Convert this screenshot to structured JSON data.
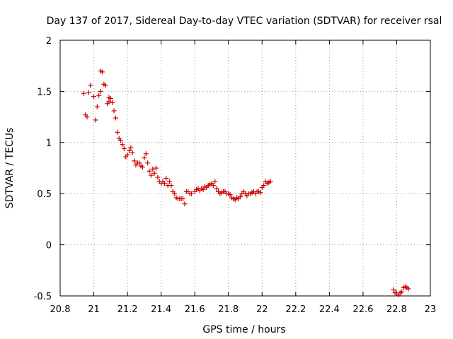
{
  "chart_data": {
    "type": "scatter",
    "title": "Day 137 of 2017, Sidereal Day-to-day VTEC variation (SDTVAR) for receiver rsal",
    "xlabel": "GPS time / hours",
    "ylabel": "SDTVAR / TECUs",
    "xlim": [
      20.8,
      23
    ],
    "ylim": [
      -0.5,
      2
    ],
    "x_ticks": [
      "20.8",
      "21",
      "21.2",
      "21.4",
      "21.6",
      "21.8",
      "22",
      "22.2",
      "22.4",
      "22.6",
      "22.8",
      "23"
    ],
    "y_ticks": [
      "-0.5",
      "0",
      "0.5",
      "1",
      "1.5",
      "2"
    ],
    "grid": true,
    "marker": "+",
    "color": "#cc0000",
    "series": [
      {
        "name": "SDTVAR",
        "points": [
          [
            20.94,
            1.48
          ],
          [
            20.95,
            1.27
          ],
          [
            20.96,
            1.25
          ],
          [
            20.97,
            1.49
          ],
          [
            20.98,
            1.56
          ],
          [
            21.0,
            1.45
          ],
          [
            21.01,
            1.22
          ],
          [
            21.02,
            1.35
          ],
          [
            21.03,
            1.46
          ],
          [
            21.04,
            1.5
          ],
          [
            21.04,
            1.7
          ],
          [
            21.05,
            1.69
          ],
          [
            21.06,
            1.57
          ],
          [
            21.07,
            1.56
          ],
          [
            21.08,
            1.38
          ],
          [
            21.09,
            1.44
          ],
          [
            21.09,
            1.4
          ],
          [
            21.1,
            1.43
          ],
          [
            21.11,
            1.39
          ],
          [
            21.12,
            1.31
          ],
          [
            21.13,
            1.24
          ],
          [
            21.14,
            1.1
          ],
          [
            21.15,
            1.04
          ],
          [
            21.16,
            1.02
          ],
          [
            21.17,
            0.98
          ],
          [
            21.18,
            0.94
          ],
          [
            21.19,
            0.86
          ],
          [
            21.2,
            0.88
          ],
          [
            21.21,
            0.92
          ],
          [
            21.22,
            0.95
          ],
          [
            21.23,
            0.9
          ],
          [
            21.24,
            0.82
          ],
          [
            21.25,
            0.78
          ],
          [
            21.26,
            0.8
          ],
          [
            21.27,
            0.8
          ],
          [
            21.28,
            0.77
          ],
          [
            21.29,
            0.76
          ],
          [
            21.3,
            0.85
          ],
          [
            21.31,
            0.89
          ],
          [
            21.32,
            0.8
          ],
          [
            21.33,
            0.72
          ],
          [
            21.34,
            0.68
          ],
          [
            21.35,
            0.74
          ],
          [
            21.36,
            0.7
          ],
          [
            21.37,
            0.75
          ],
          [
            21.38,
            0.66
          ],
          [
            21.39,
            0.62
          ],
          [
            21.4,
            0.6
          ],
          [
            21.41,
            0.62
          ],
          [
            21.42,
            0.6
          ],
          [
            21.43,
            0.65
          ],
          [
            21.44,
            0.58
          ],
          [
            21.45,
            0.62
          ],
          [
            21.46,
            0.58
          ],
          [
            21.47,
            0.52
          ],
          [
            21.48,
            0.5
          ],
          [
            21.49,
            0.46
          ],
          [
            21.5,
            0.45
          ],
          [
            21.51,
            0.45
          ],
          [
            21.52,
            0.45
          ],
          [
            21.53,
            0.45
          ],
          [
            21.54,
            0.4
          ],
          [
            21.55,
            0.52
          ],
          [
            21.56,
            0.52
          ],
          [
            21.57,
            0.5
          ],
          [
            21.58,
            0.5
          ],
          [
            21.6,
            0.52
          ],
          [
            21.61,
            0.54
          ],
          [
            21.62,
            0.55
          ],
          [
            21.63,
            0.53
          ],
          [
            21.64,
            0.55
          ],
          [
            21.65,
            0.54
          ],
          [
            21.66,
            0.57
          ],
          [
            21.67,
            0.56
          ],
          [
            21.68,
            0.58
          ],
          [
            21.69,
            0.59
          ],
          [
            21.7,
            0.6
          ],
          [
            21.71,
            0.58
          ],
          [
            21.72,
            0.62
          ],
          [
            21.73,
            0.55
          ],
          [
            21.74,
            0.52
          ],
          [
            21.75,
            0.5
          ],
          [
            21.76,
            0.51
          ],
          [
            21.77,
            0.52
          ],
          [
            21.78,
            0.52
          ],
          [
            21.79,
            0.5
          ],
          [
            21.8,
            0.5
          ],
          [
            21.81,
            0.49
          ],
          [
            21.82,
            0.46
          ],
          [
            21.83,
            0.45
          ],
          [
            21.84,
            0.44
          ],
          [
            21.85,
            0.46
          ],
          [
            21.86,
            0.45
          ],
          [
            21.87,
            0.47
          ],
          [
            21.88,
            0.5
          ],
          [
            21.89,
            0.52
          ],
          [
            21.9,
            0.5
          ],
          [
            21.91,
            0.48
          ],
          [
            21.92,
            0.5
          ],
          [
            21.93,
            0.5
          ],
          [
            21.94,
            0.51
          ],
          [
            21.95,
            0.52
          ],
          [
            21.96,
            0.5
          ],
          [
            21.97,
            0.52
          ],
          [
            21.98,
            0.52
          ],
          [
            21.99,
            0.51
          ],
          [
            22.0,
            0.56
          ],
          [
            22.01,
            0.58
          ],
          [
            22.02,
            0.62
          ],
          [
            22.03,
            0.6
          ],
          [
            22.04,
            0.61
          ],
          [
            22.05,
            0.62
          ],
          [
            22.78,
            -0.44
          ],
          [
            22.79,
            -0.47
          ],
          [
            22.8,
            -0.47
          ],
          [
            22.81,
            -0.49
          ],
          [
            22.82,
            -0.47
          ],
          [
            22.83,
            -0.46
          ],
          [
            22.84,
            -0.42
          ],
          [
            22.85,
            -0.41
          ],
          [
            22.86,
            -0.42
          ],
          [
            22.87,
            -0.43
          ]
        ]
      }
    ]
  }
}
